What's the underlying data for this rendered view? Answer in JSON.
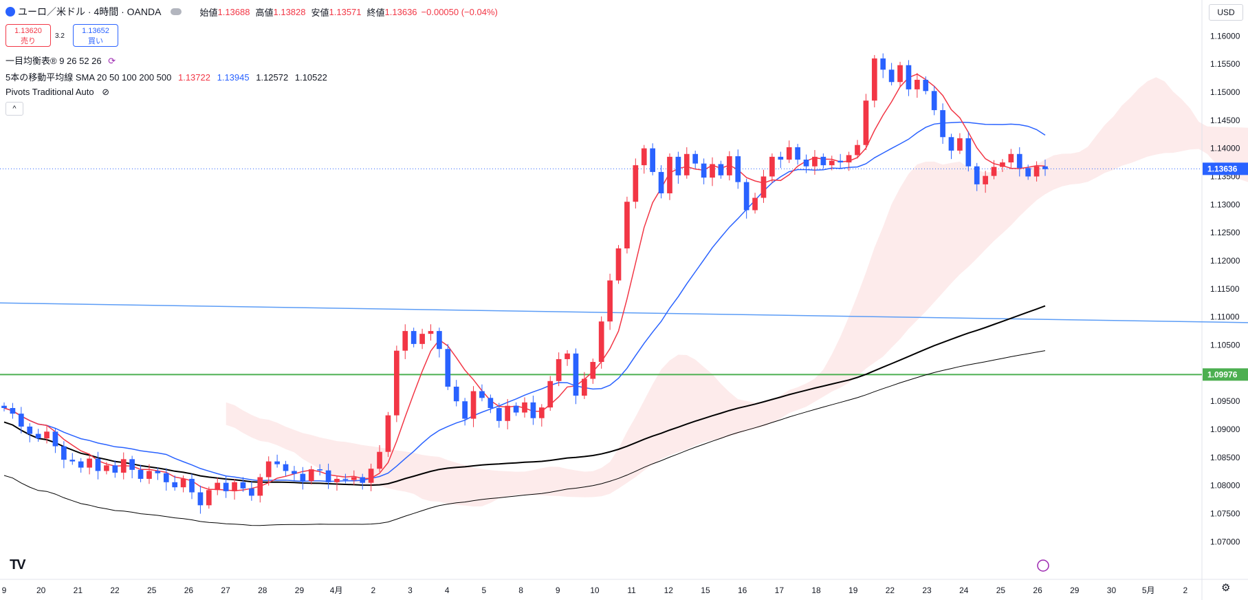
{
  "header": {
    "symbol_title": "ユーロ／米ドル · 4時間 · OANDA",
    "open_label": "始値",
    "open": "1.13688",
    "high_label": "高値",
    "high": "1.13828",
    "low_label": "安値",
    "low": "1.13571",
    "close_label": "終値",
    "close": "1.13636",
    "change": "−0.00050 (−0.04%)"
  },
  "trade": {
    "sell_price": "1.13620",
    "sell_label": "売り",
    "spread": "3.2",
    "buy_price": "1.13652",
    "buy_label": "買い"
  },
  "indicators": {
    "ichimoku": "一目均衡表® 9 26 52 26",
    "sma_name": "5本の移動平均線 SMA 20 50 100 200 500",
    "sma_v1": "1.13722",
    "sma_v2": "1.13945",
    "sma_v3": "1.12572",
    "sma_v4": "1.10522",
    "pivots": "Pivots Traditional Auto"
  },
  "currency_button": "USD",
  "colors": {
    "up": "#f23645",
    "down": "#2962ff",
    "sma20": "#f23645",
    "sma50": "#2962ff",
    "sma100": "#000000",
    "sma200": "#000000",
    "hline": "#4caf50",
    "trend": "#5b9cf6"
  },
  "chart_data": {
    "type": "candlestick",
    "y_axis_ticks": [
      "1.16000",
      "1.15500",
      "1.15000",
      "1.14500",
      "1.14000",
      "1.13500",
      "1.13000",
      "1.12500",
      "1.12000",
      "1.11500",
      "1.11000",
      "1.10500",
      "1.09976",
      "1.09500",
      "1.09000",
      "1.08500",
      "1.08000",
      "1.07500",
      "1.07000"
    ],
    "ylim": [
      1.0665,
      1.1615
    ],
    "last_price_label": "1.13636",
    "hline_label": "1.09976",
    "x_axis_ticks": [
      "9",
      "20",
      "21",
      "22",
      "25",
      "26",
      "27",
      "28",
      "29",
      "4月",
      "2",
      "3",
      "4",
      "5",
      "8",
      "9",
      "10",
      "11",
      "12",
      "15",
      "16",
      "17",
      "18",
      "19",
      "22",
      "23",
      "24",
      "25",
      "26",
      "29",
      "30",
      "5月",
      "2"
    ],
    "last_price": 1.13636,
    "hline_price": 1.09976,
    "trendline": [
      [
        0,
        1.1125
      ],
      [
        1815,
        1.109
      ]
    ],
    "close_series": [
      1.0938,
      1.0928,
      1.0905,
      1.0892,
      1.0884,
      1.0896,
      1.087,
      1.0846,
      1.0843,
      1.0832,
      1.0848,
      1.0826,
      1.0836,
      1.0823,
      1.0847,
      1.0828,
      1.0812,
      1.0826,
      1.0822,
      1.0806,
      1.0797,
      1.0812,
      1.0788,
      1.0765,
      1.0792,
      1.0805,
      1.079,
      1.0806,
      1.0795,
      1.0782,
      1.0815,
      1.0843,
      1.0838,
      1.0826,
      1.0821,
      1.0808,
      1.0829,
      1.0827,
      1.0806,
      1.0812,
      1.081,
      1.0815,
      1.0805,
      1.083,
      1.086,
      1.0925,
      1.104,
      1.1075,
      1.1052,
      1.107,
      1.1075,
      1.1043,
      1.0976,
      1.095,
      1.0919,
      1.0968,
      1.0956,
      1.0938,
      1.0915,
      1.0942,
      1.093,
      1.0948,
      1.092,
      1.0939,
      1.0986,
      1.1025,
      1.1035,
      1.096,
      1.099,
      1.102,
      1.1092,
      1.1165,
      1.1222,
      1.1305,
      1.137,
      1.14,
      1.1358,
      1.132,
      1.1385,
      1.1352,
      1.139,
      1.1373,
      1.1348,
      1.1372,
      1.1352,
      1.1386,
      1.134,
      1.129,
      1.1312,
      1.135,
      1.1385,
      1.138,
      1.1402,
      1.138,
      1.1368,
      1.1385,
      1.137,
      1.1378,
      1.1375,
      1.1388,
      1.1406,
      1.1485,
      1.156,
      1.154,
      1.1518,
      1.1548,
      1.1505,
      1.1522,
      1.1502,
      1.1468,
      1.142,
      1.1396,
      1.1418,
      1.1368,
      1.1336,
      1.1351,
      1.1367,
      1.1375,
      1.139,
      1.1365,
      1.135,
      1.1368,
      1.1363
    ]
  }
}
